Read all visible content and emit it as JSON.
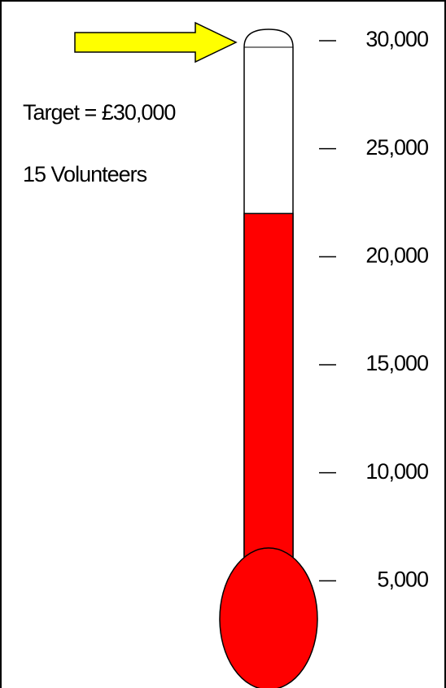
{
  "chart_data": {
    "type": "thermometer",
    "annotations": [
      "Target = £30,000",
      "15 Volunteers"
    ],
    "value": 22000,
    "color": "#ff0000",
    "arrow_color": "#ffff00",
    "ylim": [
      0,
      30000
    ],
    "yticks": [
      {
        "value": 5000,
        "label": "5,000"
      },
      {
        "value": 10000,
        "label": "10,000"
      },
      {
        "value": 15000,
        "label": "15,000"
      },
      {
        "value": 20000,
        "label": "20,000"
      },
      {
        "value": 25000,
        "label": "25,000"
      },
      {
        "value": 30000,
        "label": "30,000"
      }
    ]
  }
}
